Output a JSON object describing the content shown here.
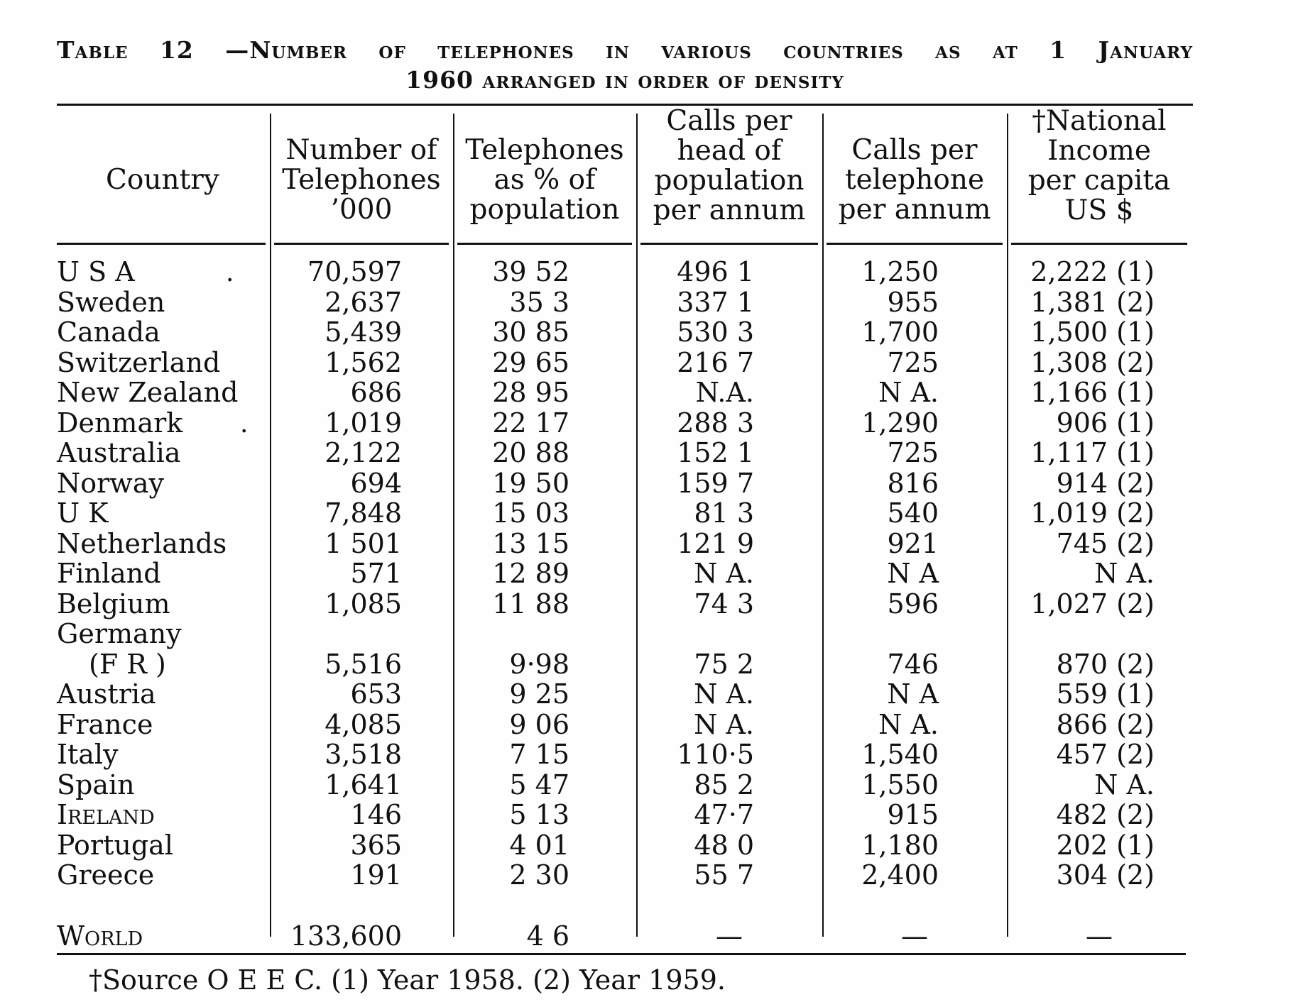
{
  "caption": {
    "line1": "Table 12 —Number of telephones in various countries as at 1 January",
    "line2": "1960 arranged in order of density"
  },
  "headers": [
    [
      "Country"
    ],
    [
      "Number of",
      "Telephones",
      "’000"
    ],
    [
      "Telephones",
      "as % of",
      "population"
    ],
    [
      "Calls per",
      "head of",
      "population",
      "per annum"
    ],
    [
      "Calls per",
      "telephone",
      "per annum"
    ],
    [
      "†National",
      "Income",
      "per capita",
      "US $"
    ]
  ],
  "rows": [
    {
      "country": "U S A",
      "telephones": "70,597",
      "pct": "39 52",
      "calls_head": "496 1",
      "calls_tel": "1,250",
      "income": "2,222 (1)"
    },
    {
      "country": "Sweden",
      "telephones": "2,637",
      "pct": "35 3",
      "calls_head": "337 1",
      "calls_tel": "955",
      "income": "1,381 (2)"
    },
    {
      "country": "Canada",
      "telephones": "5,439",
      "pct": "30 85",
      "calls_head": "530 3",
      "calls_tel": "1,700",
      "income": "1,500 (1)"
    },
    {
      "country": "Switzerland",
      "telephones": "1,562",
      "pct": "29 65",
      "calls_head": "216 7",
      "calls_tel": "725",
      "income": "1,308 (2)"
    },
    {
      "country": "New Zealand",
      "telephones": "686",
      "pct": "28 95",
      "calls_head": "N.A.",
      "calls_tel": "N A.",
      "income": "1,166 (1)"
    },
    {
      "country": "Denmark",
      "telephones": "1,019",
      "pct": "22 17",
      "calls_head": "288 3",
      "calls_tel": "1,290",
      "income": "906 (1)"
    },
    {
      "country": "Australia",
      "telephones": "2,122",
      "pct": "20 88",
      "calls_head": "152 1",
      "calls_tel": "725",
      "income": "1,117 (1)"
    },
    {
      "country": "Norway",
      "telephones": "694",
      "pct": "19 50",
      "calls_head": "159 7",
      "calls_tel": "816",
      "income": "914 (2)"
    },
    {
      "country": "U K",
      "telephones": "7,848",
      "pct": "15 03",
      "calls_head": "81 3",
      "calls_tel": "540",
      "income": "1,019 (2)"
    },
    {
      "country": "Netherlands",
      "telephones": "1 501",
      "pct": "13 15",
      "calls_head": "121 9",
      "calls_tel": "921",
      "income": "745 (2)"
    },
    {
      "country": "Finland",
      "telephones": "571",
      "pct": "12 89",
      "calls_head": "N A.",
      "calls_tel": "N A",
      "income": "N A."
    },
    {
      "country": "Belgium",
      "telephones": "1,085",
      "pct": "11 88",
      "calls_head": "74 3",
      "calls_tel": "596",
      "income": "1,027 (2)"
    },
    {
      "country": "Germany",
      "telephones": "",
      "pct": "",
      "calls_head": "",
      "calls_tel": "",
      "income": ""
    },
    {
      "country": "(F R )",
      "telephones": "5,516",
      "pct": "9·98",
      "calls_head": "75 2",
      "calls_tel": "746",
      "income": "870 (2)"
    },
    {
      "country": "Austria",
      "telephones": "653",
      "pct": "9 25",
      "calls_head": "N A.",
      "calls_tel": "N A",
      "income": "559 (1)"
    },
    {
      "country": "France",
      "telephones": "4,085",
      "pct": "9 06",
      "calls_head": "N A.",
      "calls_tel": "N A.",
      "income": "866 (2)"
    },
    {
      "country": "Italy",
      "telephones": "3,518",
      "pct": "7 15",
      "calls_head": "110·5",
      "calls_tel": "1,540",
      "income": "457 (2)"
    },
    {
      "country": "Spain",
      "telephones": "1,641",
      "pct": "5 47",
      "calls_head": "85 2",
      "calls_tel": "1,550",
      "income": "N A."
    },
    {
      "country": "Ireland",
      "telephones": "146",
      "pct": "5 13",
      "calls_head": "47·7",
      "calls_tel": "915",
      "income": "482 (2)"
    },
    {
      "country": "Portugal",
      "telephones": "365",
      "pct": "4 01",
      "calls_head": "48 0",
      "calls_tel": "1,180",
      "income": "202 (1)"
    },
    {
      "country": "Greece",
      "telephones": "191",
      "pct": "2 30",
      "calls_head": "55 7",
      "calls_tel": "2,400",
      "income": "304 (2)"
    }
  ],
  "world": {
    "country": "World",
    "telephones": "133,600",
    "pct": "4 6",
    "calls_head": "—",
    "calls_tel": "—",
    "income": "—"
  },
  "footnote": "†Source O E E C.   (1) Year 1958.   (2) Year 1959."
}
